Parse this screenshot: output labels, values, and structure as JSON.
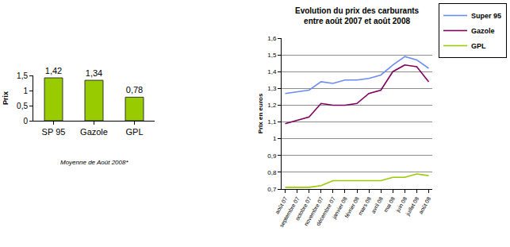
{
  "chart_data": [
    {
      "type": "bar",
      "y_label": "Prix",
      "annotations": [
        "Moyenne de Août 2008*"
      ],
      "categories": [
        "SP 95",
        "Gazole",
        "GPL"
      ],
      "values": [
        1.42,
        1.34,
        0.78
      ],
      "value_labels": [
        "1,42",
        "1,34",
        "0,78"
      ],
      "color": "#99cc00",
      "ylim": [
        0,
        1.5
      ],
      "yticks": [
        0,
        {
          "value": 0.5,
          "label": "0,5"
        },
        1,
        {
          "value": 1.5,
          "label": "1,5"
        }
      ],
      "grid": false,
      "data_labels": true
    },
    {
      "type": "line",
      "title": "Evolution du prix des carburants entre août 2007 et août 2008",
      "y_label": "Prix en euros",
      "categories": [
        "août 07",
        "septembre 07",
        "octobre 07",
        "novembre 07",
        "décembre 07",
        "janvier 08",
        "février 08",
        "mars 08",
        "avril 08",
        "mai 08",
        "juin 08",
        "juillet 08",
        "août 08"
      ],
      "series": [
        {
          "name": "Super 95",
          "color": "#6a8cf0",
          "values": [
            1.27,
            1.28,
            1.29,
            1.34,
            1.33,
            1.35,
            1.35,
            1.36,
            1.38,
            1.44,
            1.49,
            1.47,
            1.42
          ]
        },
        {
          "name": "Gazole",
          "color": "#800060",
          "values": [
            1.09,
            1.11,
            1.13,
            1.21,
            1.2,
            1.2,
            1.21,
            1.27,
            1.29,
            1.4,
            1.44,
            1.43,
            1.34
          ]
        },
        {
          "name": "GPL",
          "color": "#99cc00",
          "values": [
            0.71,
            0.71,
            0.71,
            0.72,
            0.75,
            0.75,
            0.75,
            0.75,
            0.75,
            0.77,
            0.77,
            0.79,
            0.78
          ]
        }
      ],
      "ylim": [
        0.7,
        1.6
      ],
      "yticks": [
        {
          "value": 0.7,
          "label": "0,7"
        },
        {
          "value": 0.8,
          "label": "0,8"
        },
        {
          "value": 0.9,
          "label": "0,9"
        },
        1,
        {
          "value": 1.1,
          "label": "1,1"
        },
        {
          "value": 1.2,
          "label": "1,2"
        },
        {
          "value": 1.3,
          "label": "1,3"
        },
        {
          "value": 1.4,
          "label": "1,4"
        },
        {
          "value": 1.5,
          "label": "1,5"
        },
        {
          "value": 1.6,
          "label": "1,6"
        }
      ],
      "grid": true,
      "legend": "top right"
    }
  ]
}
